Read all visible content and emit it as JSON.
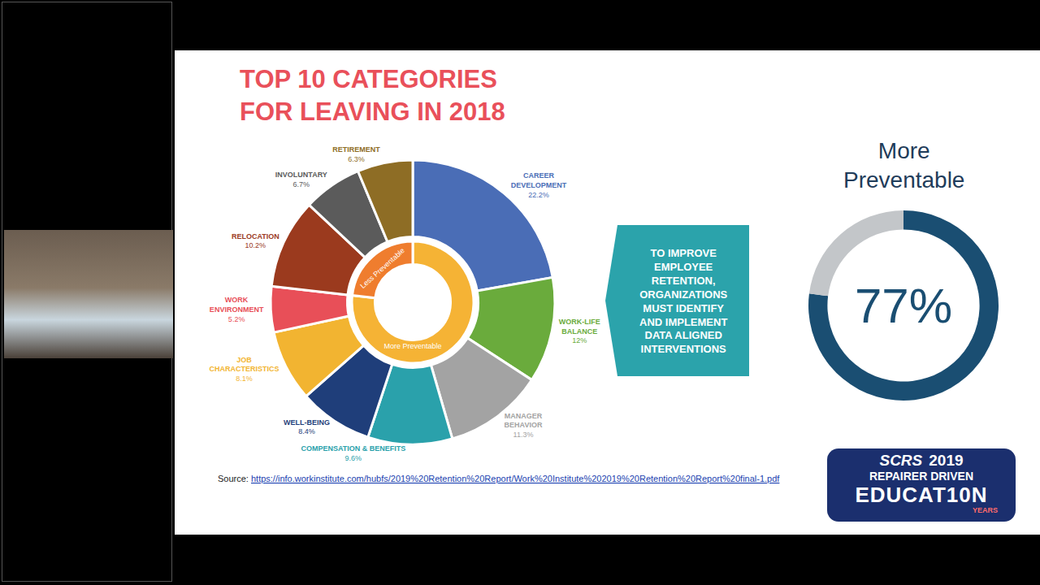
{
  "chart_data": [
    {
      "type": "pie",
      "title": "TOP 10 CATEGORIES FOR LEAVING IN 2018",
      "categories": [
        "CAREER DEVELOPMENT",
        "WORK-LIFE BALANCE",
        "MANAGER BEHAVIOR",
        "COMPENSATION & BENEFITS",
        "WELL-BEING",
        "JOB CHARACTERISTICS",
        "WORK ENVIRONMENT",
        "RELOCATION",
        "INVOLUNTARY",
        "RETIREMENT"
      ],
      "values": [
        22.2,
        12,
        11.3,
        9.6,
        8.4,
        8.1,
        5.2,
        10.2,
        6.7,
        6.3
      ],
      "value_labels": [
        "22.2%",
        "12%",
        "11.3%",
        "9.6%",
        "8.4%",
        "8.1%",
        "5.2%",
        "10.2%",
        "6.7%",
        "6.3%"
      ],
      "colors": [
        "#4a6db6",
        "#6aab3c",
        "#a3a3a3",
        "#2aa1ab",
        "#1f3e7a",
        "#f2b431",
        "#e84f58",
        "#9b3a1e",
        "#5b5b5b",
        "#8e6d25"
      ],
      "data_labels": true
    },
    {
      "type": "pie",
      "categories": [
        "More Preventable",
        "Less Preventable"
      ],
      "values": [
        76.8,
        23.2
      ],
      "colors": [
        "#f5b335",
        "#ef7d2e"
      ]
    },
    {
      "type": "pie",
      "title": "More Preventable",
      "values": [
        77,
        23
      ],
      "value_labels": [
        "77%",
        null
      ],
      "colors": [
        "#1a4e72",
        "#c3c6c9"
      ],
      "data_labels": true
    }
  ],
  "callout": "TO IMPROVE EMPLOYEE RETENTION, ORGANIZATIONS MUST IDENTIFY AND IMPLEMENT DATA ALIGNED INTERVENTIONS",
  "source": {
    "label": "Source:",
    "url": "https://info.workinstitute.com/hubfs/2019%20Retention%20Report/Work%20Institute%202019%20Retention%20Report%20final-1.pdf"
  },
  "logo": {
    "name": "SCRS",
    "year": "2019",
    "tagline": "REPAIRER DRIVEN",
    "word": "EDUCAT10N",
    "years": "YEARS"
  }
}
